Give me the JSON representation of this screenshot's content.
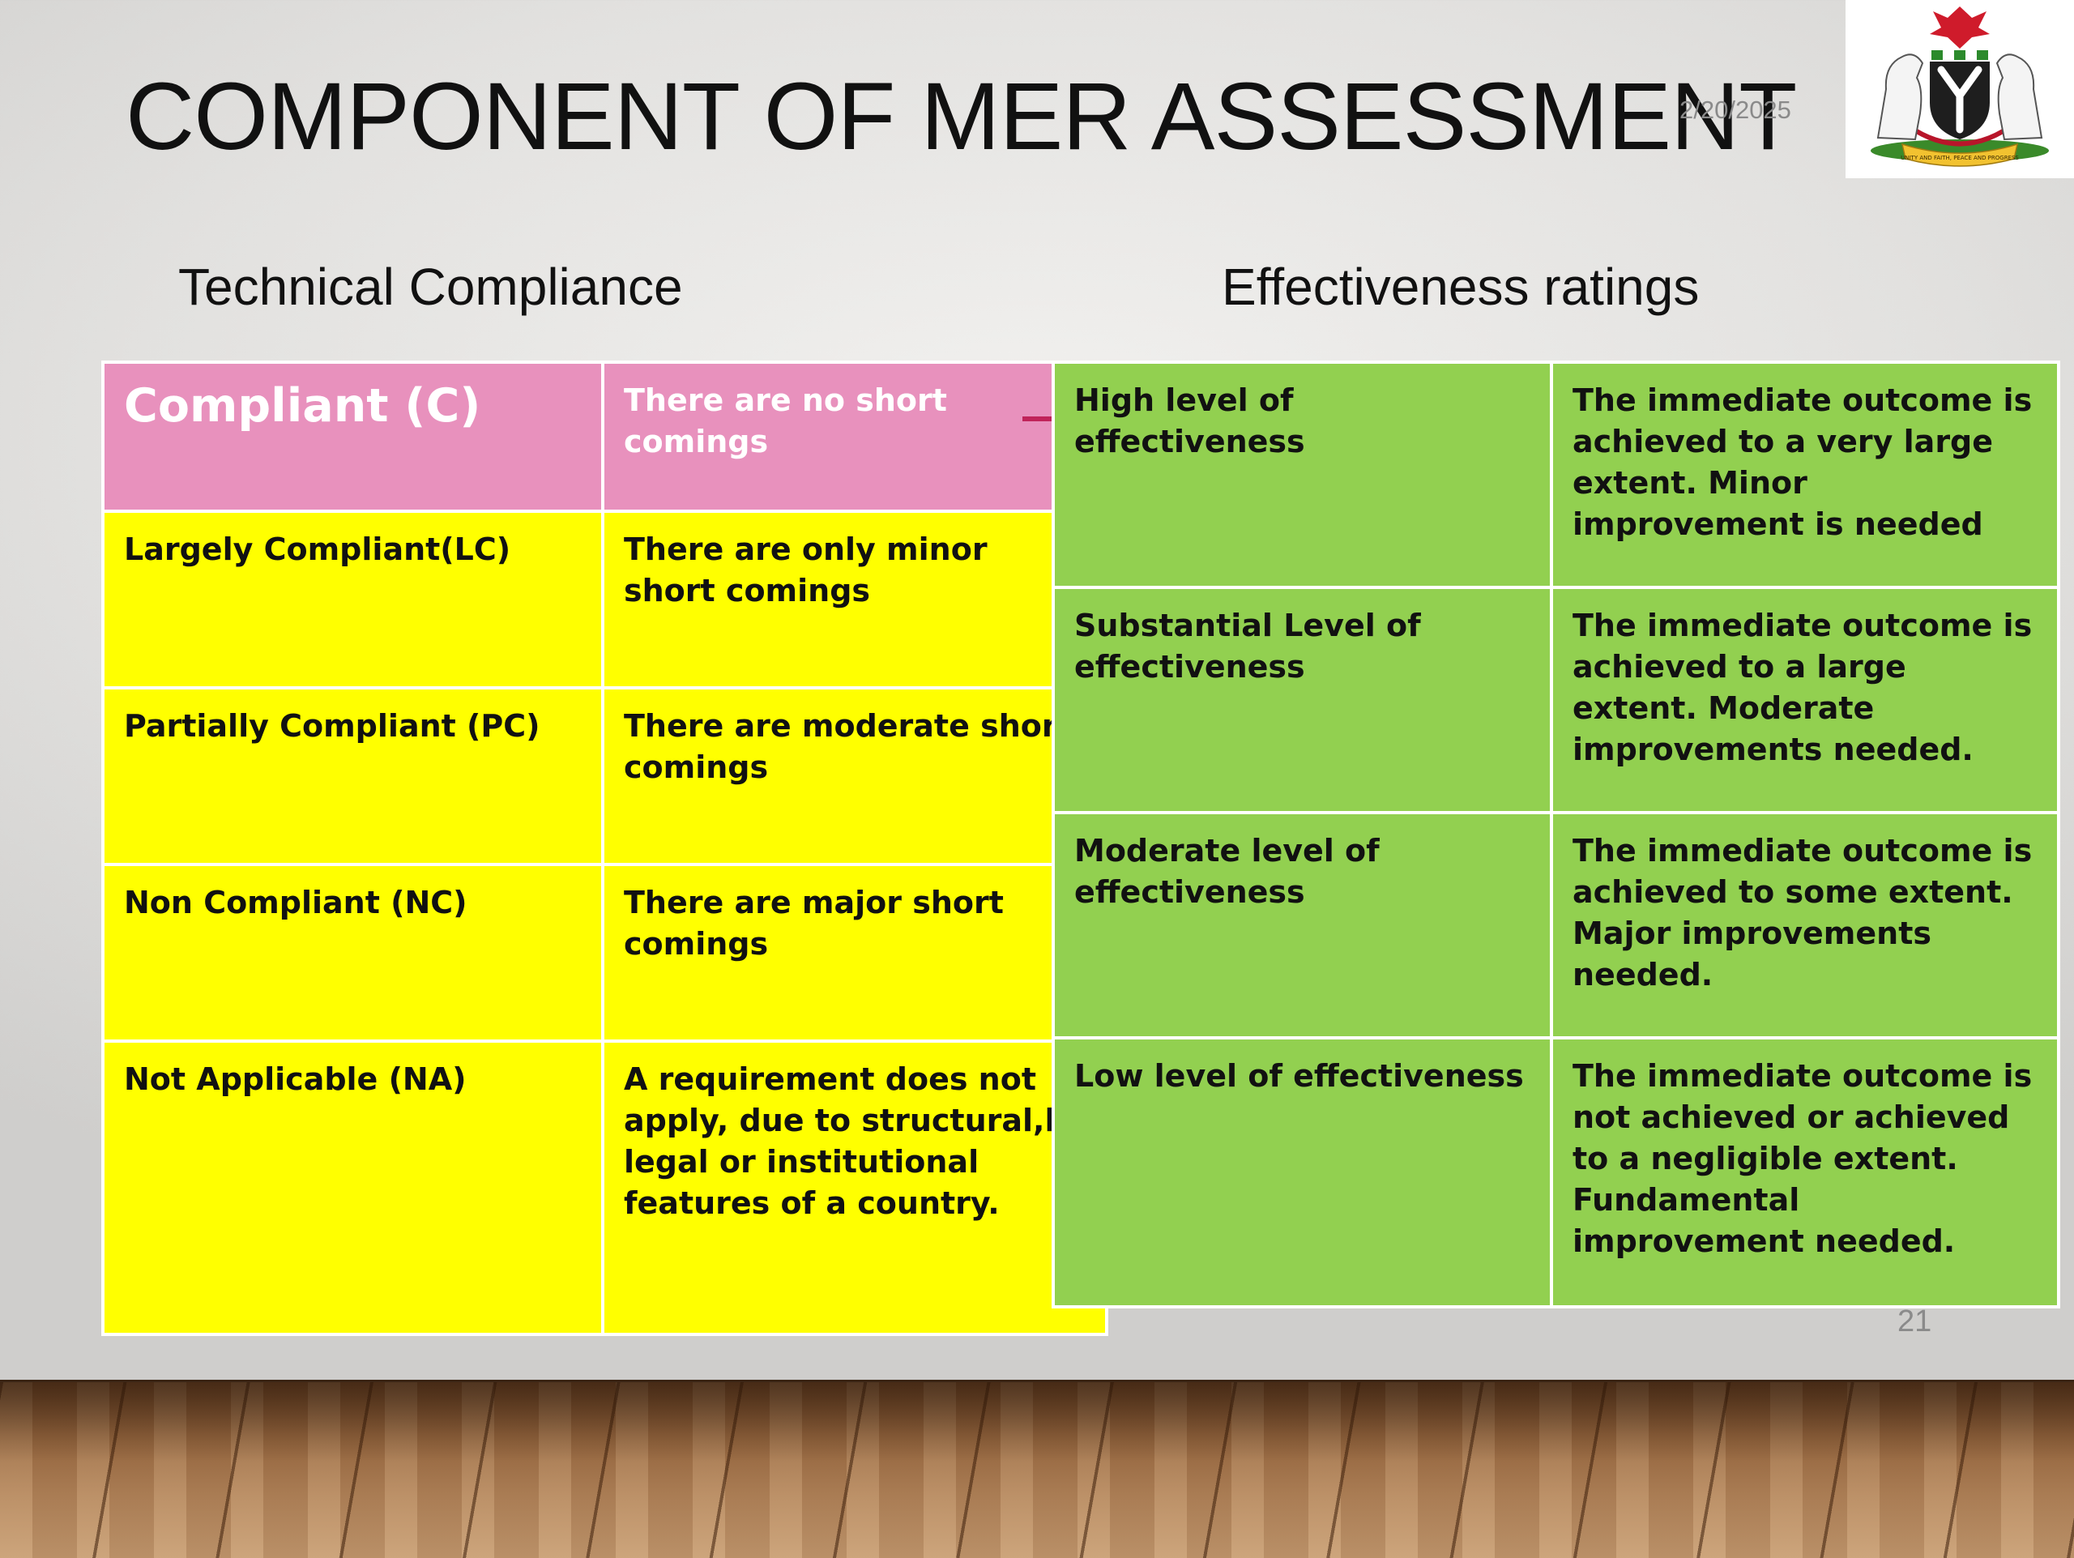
{
  "slide": {
    "title": "COMPONENT OF MER ASSESSMENT",
    "date": "2/20/2025",
    "page_number": "21",
    "logo_text": "UNITY AND FAITH, PEACE AND PROGRESS"
  },
  "technical_compliance": {
    "heading": "Technical Compliance",
    "rows": [
      {
        "rating": "Compliant   (C)",
        "description": "There are no short comings"
      },
      {
        "rating": "Largely Compliant(LC)",
        "description": "There are only minor short comings"
      },
      {
        "rating": "Partially Compliant (PC)",
        "description": "There are moderate short comings"
      },
      {
        "rating": "Non Compliant (NC)",
        "description": "There are major short comings"
      },
      {
        "rating": "Not Applicable (NA)",
        "description": "A requirement does not apply, due to  structural,l legal or institutional features of a country."
      }
    ]
  },
  "effectiveness": {
    "heading": "Effectiveness ratings",
    "rows": [
      {
        "rating": "High level of effectiveness",
        "description": "The immediate outcome is achieved to a very large extent. Minor improvement is needed"
      },
      {
        "rating": "Substantial Level of effectiveness",
        "description": "The immediate outcome is achieved to a large extent. Moderate improvements needed."
      },
      {
        "rating": "Moderate level  of effectiveness",
        "description": "The immediate outcome is achieved to some extent. Major improvements needed."
      },
      {
        "rating": "Low level of effectiveness",
        "description": "The immediate outcome is not achieved or achieved  to a negligible extent. Fundamental improvement needed."
      }
    ]
  },
  "colors": {
    "compliant_pink": "#e891bd",
    "compliance_yellow": "#ffff00",
    "effectiveness_green": "#92d050",
    "connector": "#c0245a"
  }
}
